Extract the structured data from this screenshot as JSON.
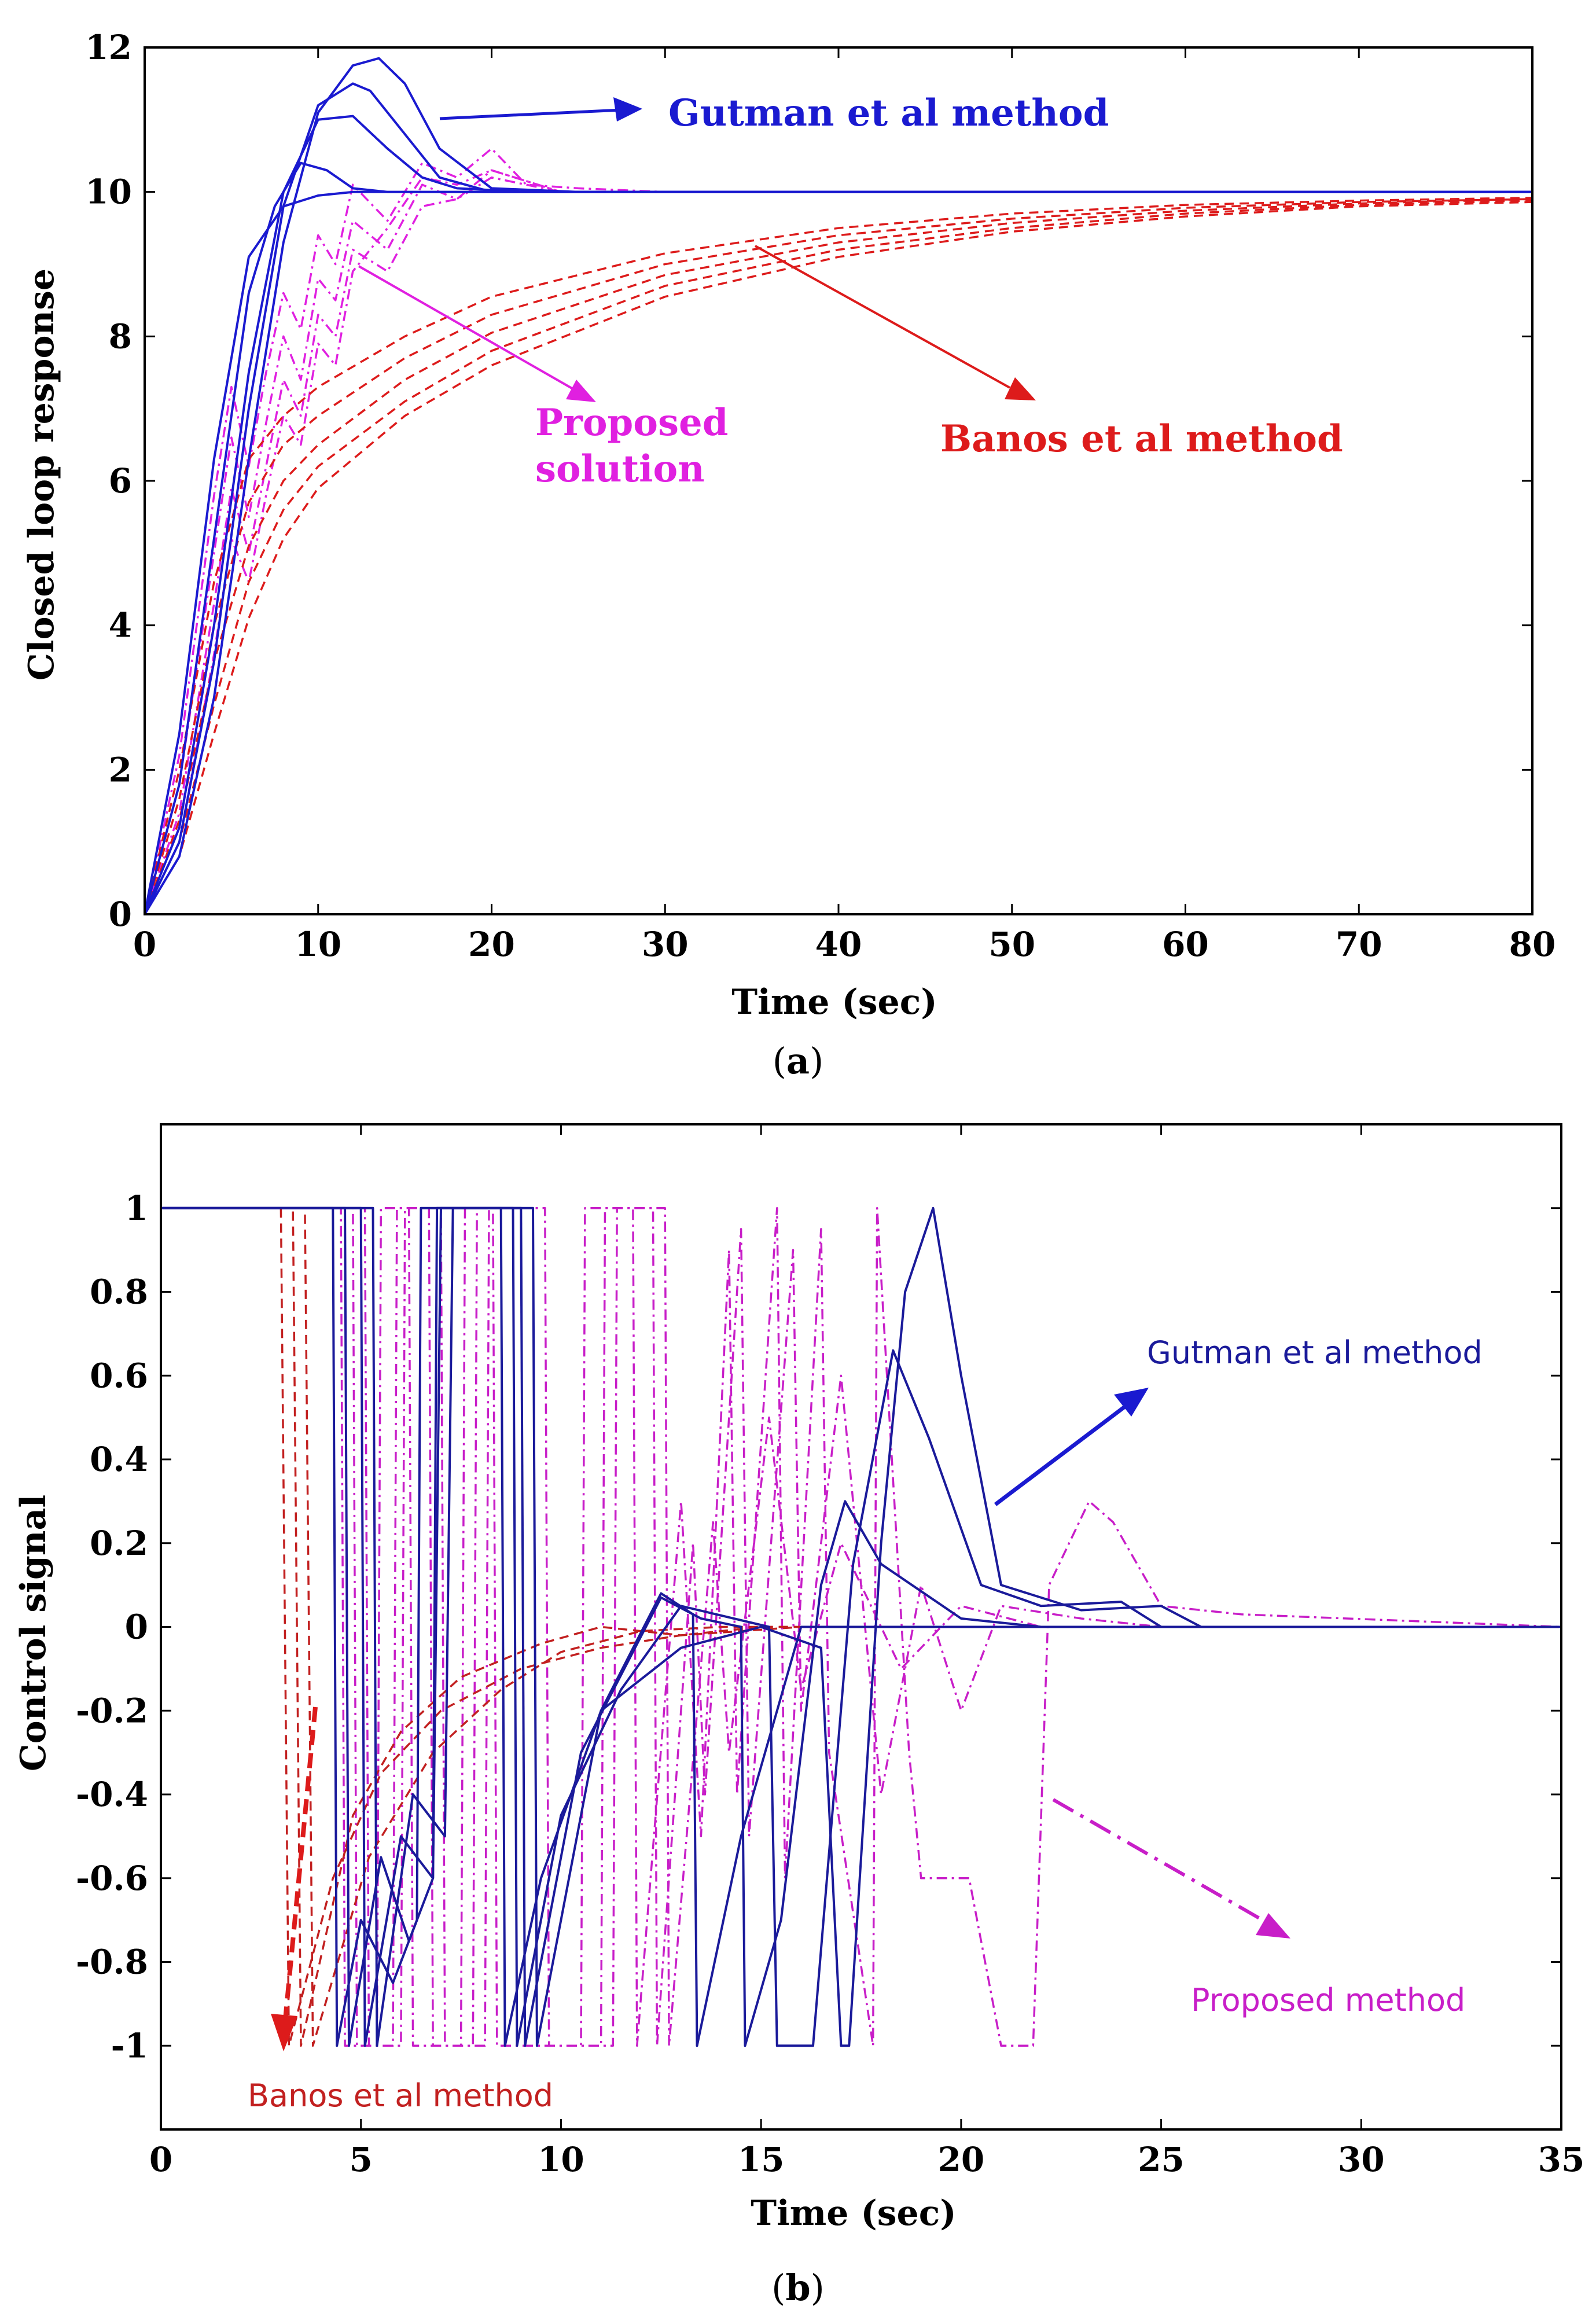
{
  "chart_data": [
    {
      "type": "line",
      "panel": "a",
      "caption_label": "a",
      "xlabel": "Time (sec)",
      "ylabel": "Closed loop response",
      "xlim": [
        0,
        80
      ],
      "ylim": [
        0,
        12
      ],
      "xticks": [
        0,
        10,
        20,
        30,
        40,
        50,
        60,
        70,
        80
      ],
      "yticks": [
        0,
        2,
        4,
        6,
        8,
        10,
        12
      ],
      "grid": false,
      "colors": {
        "gutman": "#1a1ad0",
        "banos": "#dd1b1b",
        "proposed": "#e020e0"
      },
      "annotations": {
        "gutman": "Gutman et al method",
        "proposed_line1": "Proposed",
        "proposed_line2": "solution",
        "banos": "Banos et al method"
      },
      "series": [
        {
          "name": "Gutman et al method",
          "style": "solid",
          "color": "#1a1ad0",
          "x": [
            0,
            2,
            4,
            6,
            8,
            10,
            12,
            13.5,
            15,
            17,
            20,
            25,
            30,
            80
          ],
          "y": [
            0,
            0.8,
            3.0,
            6.3,
            9.3,
            11.1,
            11.75,
            11.85,
            11.5,
            10.6,
            10.05,
            10.0,
            10.0,
            10.0
          ]
        },
        {
          "name": "Gutman et al method",
          "style": "solid",
          "color": "#1a1ad0",
          "x": [
            0,
            2,
            4,
            6,
            8,
            10,
            12,
            13,
            15,
            17,
            20,
            25,
            80
          ],
          "y": [
            0,
            1.0,
            3.5,
            7.0,
            9.8,
            11.2,
            11.5,
            11.4,
            10.8,
            10.2,
            10.0,
            10.0,
            10.0
          ]
        },
        {
          "name": "Gutman et al method",
          "style": "solid",
          "color": "#1a1ad0",
          "x": [
            0,
            2,
            4,
            6,
            8,
            10,
            12,
            14,
            16,
            18,
            22,
            80
          ],
          "y": [
            0,
            1.2,
            4.0,
            7.5,
            10.0,
            11.0,
            11.05,
            10.6,
            10.2,
            10.05,
            10.0,
            10.0
          ]
        },
        {
          "name": "Gutman et al method",
          "style": "solid",
          "color": "#1a1ad0",
          "x": [
            0,
            2,
            4,
            6,
            7.5,
            9,
            10.5,
            12,
            14,
            18,
            80
          ],
          "y": [
            0,
            1.8,
            5.2,
            8.6,
            9.8,
            10.4,
            10.3,
            10.05,
            10.0,
            10.0,
            10.0
          ]
        },
        {
          "name": "Gutman et al method",
          "style": "solid",
          "color": "#1a1ad0",
          "x": [
            0,
            2,
            4,
            6,
            8,
            10,
            12,
            80
          ],
          "y": [
            0,
            2.5,
            6.3,
            9.1,
            9.8,
            9.95,
            10.0,
            10.0
          ]
        },
        {
          "name": "Banos et al method",
          "style": "dashed",
          "color": "#dd1b1b",
          "x": [
            0,
            2,
            4,
            6,
            8,
            10,
            15,
            20,
            30,
            40,
            50,
            60,
            70,
            80
          ],
          "y": [
            0,
            2.0,
            4.6,
            6.3,
            6.9,
            7.3,
            8.0,
            8.55,
            9.15,
            9.5,
            9.7,
            9.82,
            9.88,
            9.92
          ]
        },
        {
          "name": "Banos et al method",
          "style": "dashed",
          "color": "#dd1b1b",
          "x": [
            0,
            2,
            4,
            6,
            8,
            10,
            15,
            20,
            30,
            40,
            50,
            60,
            70,
            80
          ],
          "y": [
            0,
            1.6,
            4.0,
            5.7,
            6.5,
            6.9,
            7.7,
            8.3,
            9.0,
            9.4,
            9.63,
            9.78,
            9.86,
            9.9
          ]
        },
        {
          "name": "Banos et al method",
          "style": "dashed",
          "color": "#dd1b1b",
          "x": [
            0,
            2,
            4,
            6,
            8,
            10,
            15,
            20,
            30,
            40,
            50,
            60,
            70,
            80
          ],
          "y": [
            0,
            1.3,
            3.5,
            5.1,
            6.0,
            6.5,
            7.4,
            8.05,
            8.85,
            9.3,
            9.57,
            9.74,
            9.84,
            9.9
          ]
        },
        {
          "name": "Banos et al method",
          "style": "dashed",
          "color": "#dd1b1b",
          "x": [
            0,
            2,
            4,
            6,
            8,
            10,
            15,
            20,
            30,
            40,
            50,
            60,
            70,
            80
          ],
          "y": [
            0,
            1.0,
            2.9,
            4.6,
            5.6,
            6.2,
            7.1,
            7.8,
            8.7,
            9.2,
            9.5,
            9.7,
            9.82,
            9.88
          ]
        },
        {
          "name": "Banos et al method",
          "style": "dashed",
          "color": "#dd1b1b",
          "x": [
            0,
            2,
            4,
            6,
            8,
            10,
            15,
            20,
            30,
            40,
            50,
            60,
            70,
            80
          ],
          "y": [
            0,
            0.8,
            2.5,
            4.1,
            5.2,
            5.9,
            6.9,
            7.6,
            8.55,
            9.1,
            9.45,
            9.66,
            9.8,
            9.86
          ]
        },
        {
          "name": "Proposed solution",
          "style": "dashdot",
          "color": "#e020e0",
          "x": [
            0,
            2,
            4,
            5,
            6,
            7,
            8,
            9,
            10,
            11,
            12,
            14,
            16,
            18,
            20,
            22,
            25,
            30,
            80
          ],
          "y": [
            0,
            2.2,
            5.8,
            7.3,
            6.2,
            7.5,
            8.6,
            8.1,
            9.4,
            9.0,
            10.1,
            9.6,
            10.4,
            10.2,
            10.6,
            10.1,
            10.05,
            10.0,
            10.0
          ]
        },
        {
          "name": "Proposed solution",
          "style": "dashdot",
          "color": "#e020e0",
          "x": [
            0,
            2,
            4,
            5,
            6,
            7,
            8,
            9,
            10,
            11,
            12,
            14,
            16,
            18,
            20,
            24,
            30,
            80
          ],
          "y": [
            0,
            1.8,
            5.0,
            6.6,
            5.5,
            6.8,
            8.0,
            7.4,
            8.8,
            8.5,
            9.6,
            9.2,
            10.1,
            9.9,
            10.3,
            10.0,
            10.0,
            10.0
          ]
        },
        {
          "name": "Proposed solution",
          "style": "dashdot",
          "color": "#e020e0",
          "x": [
            0,
            2,
            4,
            5,
            6,
            7,
            8,
            9,
            10,
            11,
            12,
            14,
            16,
            18,
            20,
            24,
            30,
            80
          ],
          "y": [
            0,
            1.4,
            4.3,
            5.9,
            5.0,
            6.2,
            7.4,
            6.9,
            8.3,
            8.0,
            9.2,
            8.9,
            9.8,
            9.9,
            10.2,
            10.0,
            10.0,
            10.0
          ]
        },
        {
          "name": "Proposed solution",
          "style": "dashdot",
          "color": "#e020e0",
          "x": [
            0,
            2,
            4,
            5,
            6,
            7,
            8,
            9,
            10,
            11,
            12,
            14,
            16,
            18,
            20,
            24,
            80
          ],
          "y": [
            0,
            1.0,
            3.6,
            5.2,
            4.6,
            5.8,
            6.9,
            6.5,
            7.9,
            7.6,
            8.9,
            9.5,
            10.2,
            10.1,
            10.3,
            10.0,
            10.0
          ]
        }
      ]
    },
    {
      "type": "line",
      "panel": "b",
      "caption_label": "b",
      "xlabel": "Time (sec)",
      "ylabel": "Control signal",
      "xlim": [
        0,
        35
      ],
      "ylim": [
        -1.2,
        1.2
      ],
      "xticks": [
        0,
        5,
        10,
        15,
        20,
        25,
        30,
        35
      ],
      "yticks": [
        1,
        0.8,
        0.6,
        0.4,
        0.2,
        0,
        -0.2,
        -0.4,
        -0.6,
        -0.8,
        -1
      ],
      "ytick_labels": [
        "1",
        "0.8",
        "0.6",
        "0.4",
        "0.2",
        "0",
        "-0.2",
        "-0.4",
        "-0.6",
        "-0.8",
        "-1"
      ],
      "grid": false,
      "colors": {
        "gutman": "#1a1a9a",
        "banos": "#c22020",
        "proposed": "#c81ec8"
      },
      "annotations": {
        "gutman": "Gutman et al method",
        "proposed": "Proposed method",
        "banos": "Banos et al method"
      },
      "series": [
        {
          "name": "Gutman et al method",
          "style": "solid",
          "color": "#1a1a9a",
          "x": [
            0,
            4.3,
            4.4,
            5.0,
            5.8,
            6.4,
            6.5,
            8.5,
            8.6,
            9.5,
            11,
            13,
            15,
            16.5,
            17.0,
            17.2,
            18.0,
            18.6,
            19.3,
            20.0,
            21,
            23,
            25,
            26,
            35
          ],
          "y": [
            1,
            1,
            -1,
            -0.7,
            -0.85,
            -0.7,
            1,
            1,
            -1,
            -0.6,
            -0.2,
            -0.05,
            0,
            -0.05,
            -1,
            -1,
            0.2,
            0.8,
            1.0,
            0.6,
            0.1,
            0.04,
            0.05,
            0,
            0
          ]
        },
        {
          "name": "Gutman et al method",
          "style": "solid",
          "color": "#1a1a9a",
          "x": [
            0,
            4.6,
            4.7,
            5.5,
            6.2,
            6.8,
            6.9,
            8.8,
            8.9,
            10,
            11.5,
            13,
            15.2,
            15.4,
            16.3,
            17.3,
            18.3,
            19.2,
            20.5,
            22,
            24,
            25,
            35
          ],
          "y": [
            1,
            1,
            -1,
            -0.55,
            -0.75,
            -0.6,
            1,
            1,
            -1,
            -0.45,
            -0.15,
            0.05,
            0,
            -1,
            -1,
            0.15,
            0.66,
            0.45,
            0.1,
            0.05,
            0.06,
            0,
            0
          ]
        },
        {
          "name": "Gutman et al method",
          "style": "solid",
          "color": "#1a1a9a",
          "x": [
            0,
            5.0,
            5.1,
            6.0,
            6.8,
            7.0,
            9.0,
            9.1,
            10.5,
            12.5,
            13.5,
            14.5,
            14.6,
            15.5,
            16.5,
            17.1,
            18,
            20,
            22,
            35
          ],
          "y": [
            1,
            1,
            -1,
            -0.5,
            -0.6,
            1,
            1,
            -1,
            -0.3,
            0.07,
            0.02,
            0,
            -1,
            -0.7,
            0.1,
            0.3,
            0.15,
            0.02,
            0,
            0
          ]
        },
        {
          "name": "Gutman et al method",
          "style": "solid",
          "color": "#1a1a9a",
          "x": [
            0,
            5.3,
            5.4,
            6.3,
            7.1,
            7.3,
            9.3,
            9.4,
            11,
            12.5,
            13.3,
            13.4,
            14.5,
            16,
            18,
            35
          ],
          "y": [
            1,
            1,
            -1,
            -0.4,
            -0.5,
            1,
            1,
            -1,
            -0.2,
            0.08,
            0.03,
            -1,
            -0.5,
            0.0,
            0,
            0
          ]
        },
        {
          "name": "Banos et al method",
          "style": "dashed",
          "color": "#c22020",
          "x": [
            0,
            3.0,
            3.2,
            4.3,
            5.5,
            7,
            9,
            11,
            13,
            15,
            18,
            35
          ],
          "y": [
            1,
            1,
            -1,
            -0.6,
            -0.35,
            -0.2,
            -0.1,
            -0.05,
            -0.02,
            0,
            0,
            0
          ]
        },
        {
          "name": "Banos et al method",
          "style": "dashed",
          "color": "#c22020",
          "x": [
            0,
            3.3,
            3.5,
            4.8,
            6,
            7.5,
            9.5,
            11,
            13,
            16,
            35
          ],
          "y": [
            1,
            1,
            -1,
            -0.45,
            -0.25,
            -0.12,
            -0.04,
            0,
            -0.02,
            0,
            0
          ]
        },
        {
          "name": "Banos et al method",
          "style": "dashed",
          "color": "#c22020",
          "x": [
            0,
            3.6,
            3.8,
            5.2,
            6.8,
            8.5,
            10,
            12,
            14,
            35
          ],
          "y": [
            1,
            1,
            -1,
            -0.55,
            -0.3,
            -0.15,
            -0.06,
            -0.01,
            0,
            0
          ]
        },
        {
          "name": "Proposed method",
          "style": "dashdot",
          "color": "#c81ec8",
          "x": [
            0,
            4.5,
            4.6,
            5.4,
            5.5,
            6.2,
            6.3,
            7.5,
            7.6,
            8.3,
            8.4,
            10.5,
            10.6,
            11.8,
            11.9,
            13.0,
            13.5,
            14.2,
            14.4,
            15.4,
            15.6,
            16.5,
            16.7,
            17.8,
            17.9,
            18.7,
            19.0,
            20.2,
            21.0,
            21.8,
            22.2,
            23.2,
            23.8,
            25,
            27,
            35
          ],
          "y": [
            1,
            1,
            -1,
            -1,
            1,
            1,
            -1,
            -1,
            1,
            1,
            -1,
            -1,
            1,
            1,
            -1,
            0.3,
            -0.5,
            0.9,
            -0.4,
            1,
            -0.6,
            0.95,
            -0.3,
            -1,
            1,
            -0.3,
            -0.6,
            -0.6,
            -1,
            -1,
            0.1,
            0.3,
            0.25,
            0.05,
            0.03,
            0
          ]
        },
        {
          "name": "Proposed method",
          "style": "dashdot",
          "color": "#c81ec8",
          "x": [
            0,
            4.8,
            4.9,
            5.8,
            5.9,
            6.7,
            6.8,
            7.8,
            7.9,
            9.0,
            9.1,
            11.0,
            11.1,
            12.3,
            12.4,
            13.3,
            13.6,
            14.5,
            14.7,
            15.8,
            16.0,
            17,
            18,
            19,
            20,
            21,
            23,
            25,
            35
          ],
          "y": [
            1,
            1,
            -1,
            -1,
            1,
            1,
            -1,
            -1,
            1,
            1,
            -1,
            -1,
            1,
            1,
            -1,
            0.2,
            -0.4,
            0.95,
            -0.5,
            0.9,
            -0.2,
            0.6,
            -0.4,
            0.1,
            -0.2,
            0.05,
            0.02,
            0,
            0
          ]
        },
        {
          "name": "Proposed method",
          "style": "dashdot",
          "color": "#c81ec8",
          "x": [
            0,
            5.1,
            5.2,
            6.0,
            6.1,
            7.0,
            7.1,
            8.1,
            8.2,
            9.6,
            9.7,
            11.3,
            11.4,
            12.6,
            12.7,
            13.8,
            14.2,
            15.2,
            16,
            17,
            18.5,
            20,
            22,
            35
          ],
          "y": [
            1,
            1,
            -1,
            -1,
            1,
            1,
            -1,
            -1,
            1,
            1,
            -1,
            -1,
            1,
            1,
            -1,
            0.25,
            -0.3,
            0.5,
            -0.15,
            0.2,
            -0.1,
            0.05,
            0,
            0
          ]
        }
      ]
    }
  ]
}
